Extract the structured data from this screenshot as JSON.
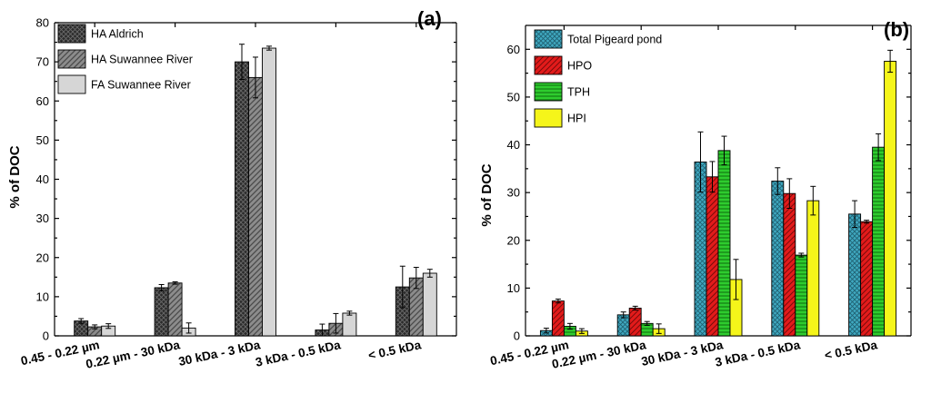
{
  "colors": {
    "ha_aldrich": "#2b2b2b",
    "ha_suwannee": "#8c8c8c",
    "fa_suwannee": "#d6d6d6",
    "total_pigeard": "#3fa8c0",
    "hpo": "#e31b1b",
    "tph": "#2ecc2e",
    "hpi": "#f5f51a"
  },
  "chart_data": [
    {
      "type": "bar",
      "panel_label": "(a)",
      "ylabel": "% of DOC",
      "xlabel": "",
      "ylim": [
        0,
        80
      ],
      "yticks": [
        0,
        10,
        20,
        30,
        40,
        50,
        60,
        70,
        80
      ],
      "categories": [
        "0.45 - 0.22 µm",
        "0.22 µm - 30 kDa",
        "30 kDa - 3 kDa",
        "3 kDa - 0.5 kDa",
        "< 0.5 kDa"
      ],
      "legend_position": "top-left",
      "series": [
        {
          "name": "HA Aldrich",
          "values": [
            3.8,
            12.3,
            70.0,
            1.5,
            12.5
          ],
          "errors": [
            0.6,
            0.8,
            4.5,
            1.5,
            5.3
          ]
        },
        {
          "name": "HA Suwannee River",
          "values": [
            2.3,
            13.5,
            66.0,
            3.2,
            14.8
          ],
          "errors": [
            0.5,
            0.3,
            5.2,
            2.5,
            2.7
          ]
        },
        {
          "name": "FA Suwannee River",
          "values": [
            2.5,
            2.0,
            73.5,
            5.8,
            16.0
          ],
          "errors": [
            0.6,
            1.3,
            0.5,
            0.5,
            1.0
          ]
        }
      ]
    },
    {
      "type": "bar",
      "panel_label": "(b)",
      "ylabel": "% of DOC",
      "xlabel": "",
      "ylim": [
        0,
        65
      ],
      "yticks": [
        0,
        10,
        20,
        30,
        40,
        50,
        60
      ],
      "categories": [
        "0.45 - 0.22 µm",
        "0.22 µm - 30 kDa",
        "30 kDa - 3 kDa",
        "3 kDa - 0.5 kDa",
        "< 0.5 kDa"
      ],
      "legend_position": "top-left",
      "series": [
        {
          "name": "Total Pigeard pond",
          "values": [
            1.1,
            4.4,
            36.4,
            32.4,
            25.5
          ],
          "errors": [
            0.5,
            0.6,
            6.3,
            2.8,
            2.8
          ]
        },
        {
          "name": "HPO",
          "values": [
            7.3,
            5.8,
            33.3,
            29.8,
            23.9
          ],
          "errors": [
            0.4,
            0.4,
            3.2,
            3.1,
            0.3
          ]
        },
        {
          "name": "TPH",
          "values": [
            2.0,
            2.6,
            38.8,
            16.9,
            39.5
          ],
          "errors": [
            0.6,
            0.4,
            3.0,
            0.4,
            2.8
          ]
        },
        {
          "name": "HPI",
          "values": [
            1.0,
            1.5,
            11.8,
            28.3,
            57.5
          ],
          "errors": [
            0.5,
            1.0,
            4.2,
            3.0,
            2.3
          ]
        }
      ]
    }
  ]
}
